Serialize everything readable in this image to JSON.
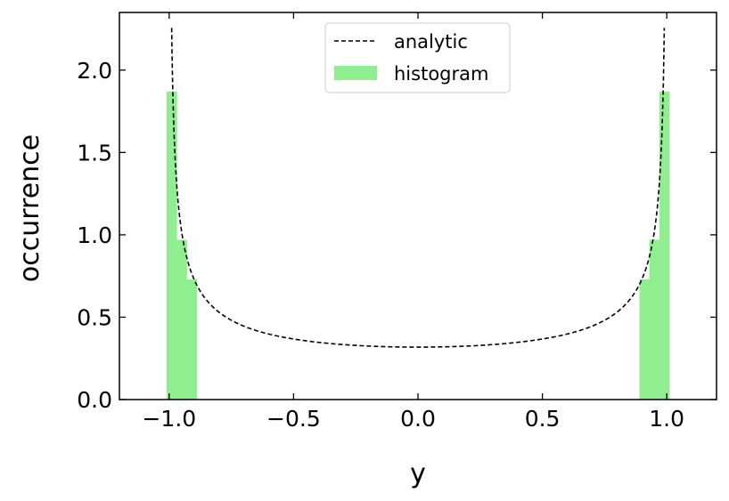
{
  "chart_data": {
    "type": "bar",
    "xlabel": "y",
    "ylabel": "occurrence",
    "xlim": [
      -1.2,
      1.2
    ],
    "ylim": [
      0,
      2.35
    ],
    "xticks": [
      -1.0,
      -0.5,
      0.0,
      0.5,
      1.0
    ],
    "xtick_labels": [
      "−1.0",
      "−0.5",
      "0.0",
      "0.5",
      "1.0"
    ],
    "yticks": [
      0.0,
      0.5,
      1.0,
      1.5,
      2.0
    ],
    "ytick_labels": [
      "0.0",
      "0.5",
      "1.0",
      "1.5",
      "2.0"
    ],
    "grid": false,
    "legend_position": "top-center",
    "histogram": {
      "name": "histogram",
      "color": "#90ee90",
      "bins": [
        {
          "x0": -1.01,
          "x1": -0.97,
          "value": 1.87
        },
        {
          "x0": -0.97,
          "x1": -0.93,
          "value": 0.97
        },
        {
          "x0": -0.93,
          "x1": -0.89,
          "value": 0.73
        },
        {
          "x0": -0.89,
          "x1": 0.89,
          "value": 0
        },
        {
          "x0": 0.89,
          "x1": 0.93,
          "value": 0.73
        },
        {
          "x0": 0.93,
          "x1": 0.97,
          "value": 0.97
        },
        {
          "x0": 0.97,
          "x1": 1.01,
          "value": 1.87
        }
      ]
    },
    "analytic": {
      "name": "analytic",
      "color": "#000000",
      "style": "dashed",
      "formula": "1/(pi*sqrt(1-y^2))",
      "x_range": [
        -0.99,
        0.99
      ]
    }
  }
}
